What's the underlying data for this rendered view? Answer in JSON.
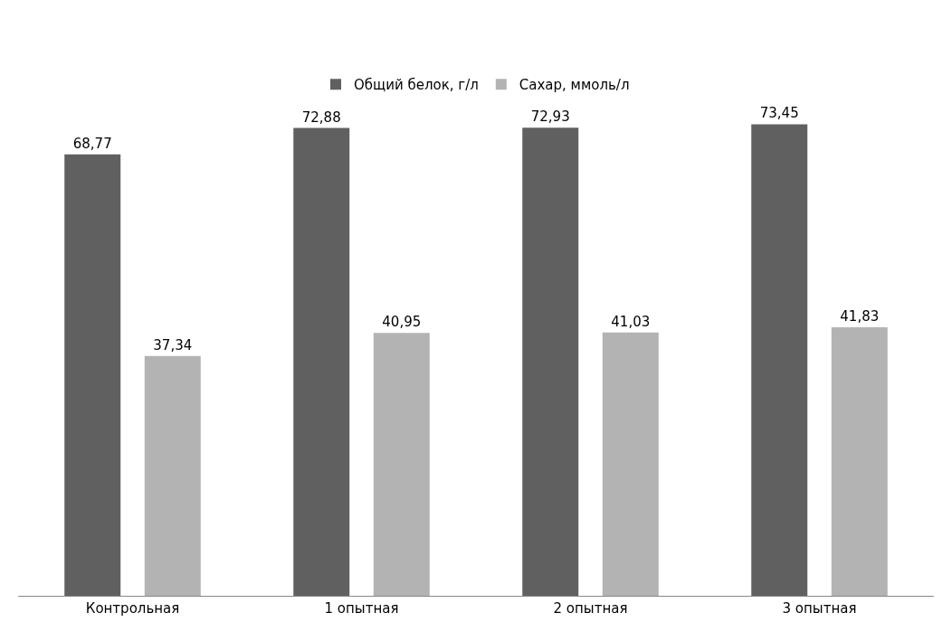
{
  "chart_data": {
    "type": "bar",
    "categories": [
      "Контрольная",
      "1 опытная",
      "2 опытная",
      "3 опытная"
    ],
    "series": [
      {
        "name": "Общий белок, г/л",
        "color": "#606060",
        "values": [
          68.77,
          72.88,
          72.93,
          73.45
        ],
        "value_labels": [
          "68,77",
          "72,88",
          "72,93",
          "73,45"
        ]
      },
      {
        "name": "Сахар, ммоль/л",
        "color": "#b3b3b3",
        "values": [
          37.34,
          40.95,
          41.03,
          41.83
        ],
        "value_labels": [
          "37,34",
          "40,95",
          "41,03",
          "41,83"
        ]
      }
    ],
    "legend": "top"
  }
}
